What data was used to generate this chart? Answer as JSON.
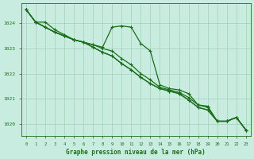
{
  "bg_color": "#c8ece0",
  "grid_color": "#a0d0b8",
  "line_color": "#1a6e1a",
  "marker_color": "#1a6e1a",
  "xlabel": "Graphe pression niveau de la mer (hPa)",
  "xlabel_color": "#1a6e1a",
  "tick_color": "#1a6e1a",
  "ylim": [
    1019.5,
    1024.8
  ],
  "xlim": [
    -0.5,
    23.5
  ],
  "yticks": [
    1020,
    1021,
    1022,
    1023,
    1024
  ],
  "xticks": [
    0,
    1,
    2,
    3,
    4,
    5,
    6,
    7,
    8,
    9,
    10,
    11,
    12,
    13,
    14,
    15,
    16,
    17,
    18,
    19,
    20,
    21,
    22,
    23
  ],
  "series": [
    {
      "y": [
        1024.55,
        1024.05,
        1024.05,
        1023.75,
        1023.55,
        1023.35,
        1023.25,
        1023.15,
        1023.05,
        1023.85,
        1023.9,
        1023.85,
        1023.2,
        1022.9,
        1021.55,
        1021.4,
        1021.35,
        1021.2,
        1020.75,
        1020.7,
        1020.1,
        1020.1,
        1020.25,
        1019.75
      ],
      "marker": true,
      "lw": 0.9
    },
    {
      "y": [
        1024.55,
        1024.05,
        1023.85,
        1023.65,
        1023.5,
        1023.35,
        1023.25,
        1023.15,
        1023.0,
        1022.9,
        1022.6,
        1022.35,
        1022.0,
        1021.75,
        1021.45,
        1021.35,
        1021.25,
        1021.05,
        1020.75,
        1020.65,
        1020.1,
        1020.1,
        1020.25,
        1019.75
      ],
      "marker": true,
      "lw": 0.9
    },
    {
      "y": [
        1024.55,
        1024.05,
        1023.85,
        1023.65,
        1023.5,
        1023.35,
        1023.25,
        1023.05,
        1022.85,
        1022.7,
        1022.4,
        1022.15,
        1021.85,
        1021.6,
        1021.4,
        1021.3,
        1021.2,
        1020.95,
        1020.65,
        1020.55,
        1020.1,
        1020.1,
        1020.25,
        1019.75
      ],
      "marker": true,
      "lw": 0.9
    },
    {
      "y": [
        1024.55,
        1024.05,
        1023.85,
        1023.65,
        1023.5,
        1023.35,
        1023.25,
        1023.05,
        1022.85,
        1022.7,
        1022.4,
        1022.15,
        1021.85,
        1021.6,
        1021.4,
        1021.3,
        1021.2,
        1020.95,
        1020.65,
        1020.55,
        1020.1,
        1020.1,
        1020.25,
        1019.75
      ],
      "marker": true,
      "lw": 0.9
    }
  ]
}
